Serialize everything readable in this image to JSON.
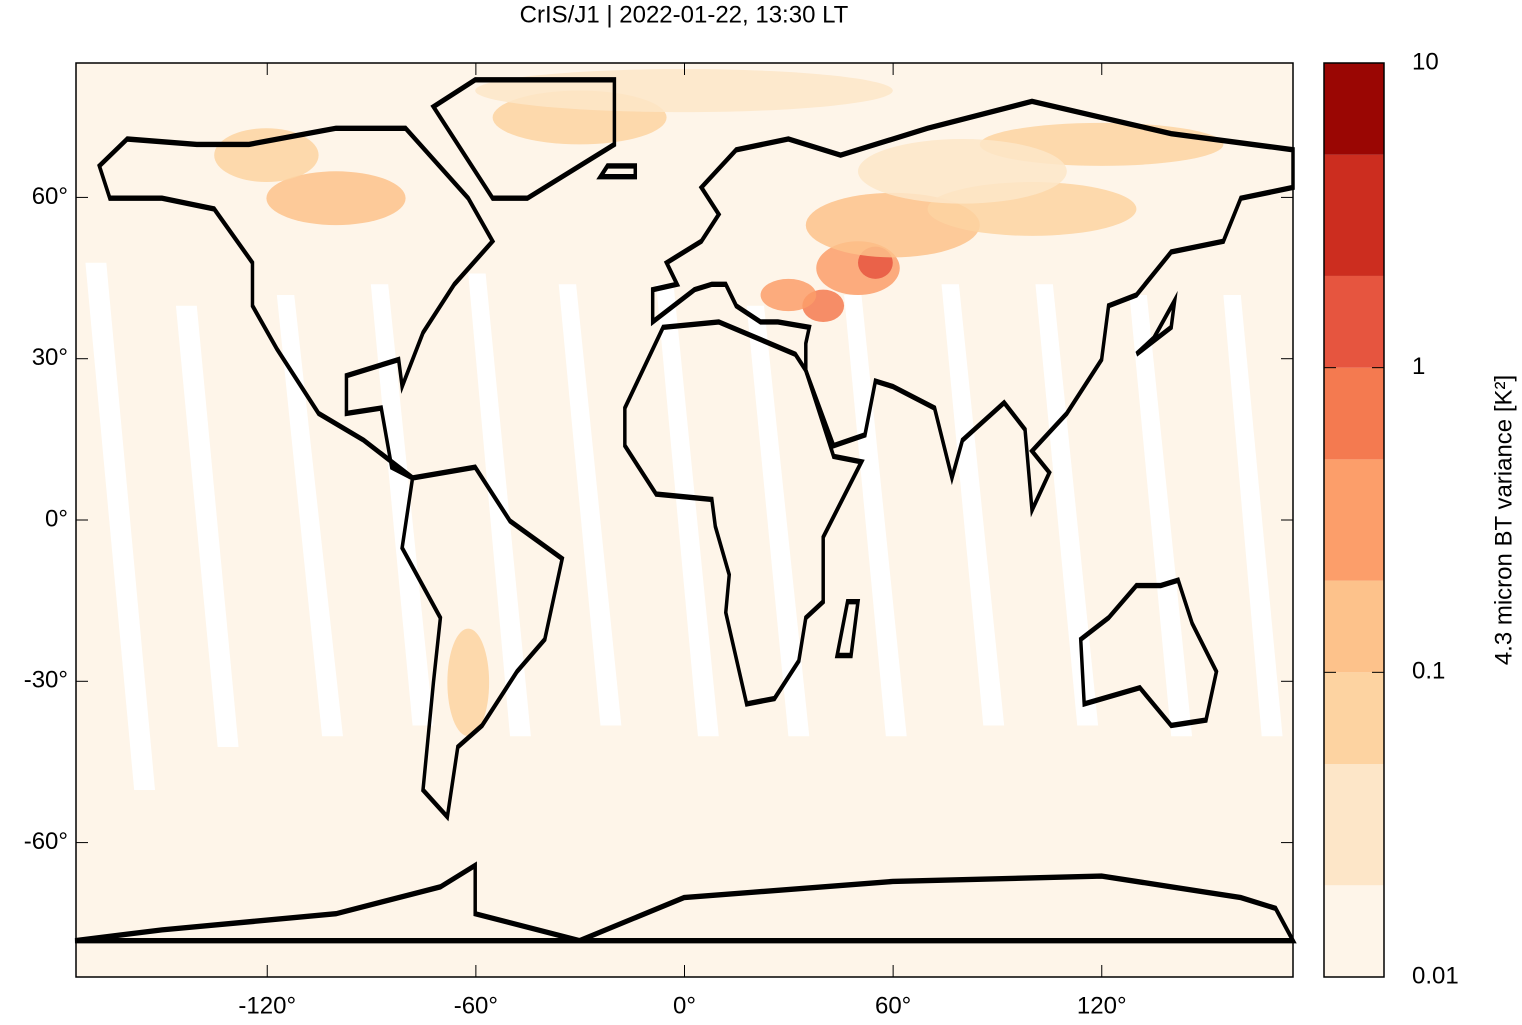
{
  "chart_data": {
    "type": "map",
    "title": "CrIS/J1 | 2022-01-22, 13:30 LT",
    "xlim": [
      -175,
      175
    ],
    "ylim": [
      -85,
      85
    ],
    "xticks": [
      {
        "value": -120,
        "label": "-120°"
      },
      {
        "value": -60,
        "label": "-60°"
      },
      {
        "value": 0,
        "label": "0°"
      },
      {
        "value": 60,
        "label": "60°"
      },
      {
        "value": 120,
        "label": "120°"
      }
    ],
    "yticks": [
      {
        "value": -60,
        "label": "-60°"
      },
      {
        "value": -30,
        "label": "-30°"
      },
      {
        "value": 0,
        "label": "0°"
      },
      {
        "value": 30,
        "label": "30°"
      },
      {
        "value": 60,
        "label": "60°"
      }
    ],
    "colorbar": {
      "label": "4.3 micron BT variance [K²]",
      "log": true,
      "levels": [
        0.01,
        0.02,
        0.05,
        0.1,
        0.2,
        0.5,
        1,
        2,
        5,
        10
      ],
      "colors": [
        "#fef5e9",
        "#fde6c8",
        "#fdd3a1",
        "#fdc28b",
        "#fc9e6a",
        "#f47a50",
        "#e6553f",
        "#cc2d1f",
        "#9a0603"
      ],
      "ticks": [
        0.01,
        0.1,
        1,
        10
      ]
    }
  }
}
